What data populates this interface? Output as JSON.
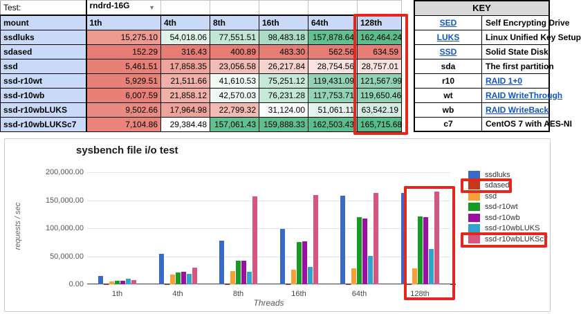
{
  "header": {
    "test_label": "Test:",
    "test_value": "rndrd-16G"
  },
  "table": {
    "columns": [
      "mount",
      "1th",
      "4th",
      "8th",
      "16th",
      "64th",
      "128th"
    ],
    "rows": [
      {
        "label": "ssdluks",
        "cells": [
          {
            "v": "15,275.10",
            "c": "#ED9B91"
          },
          {
            "v": "54,018.06",
            "c": "#E0F3EA"
          },
          {
            "v": "77,551.51",
            "c": "#C3E7D6"
          },
          {
            "v": "98,483.18",
            "c": "#AADCC5"
          },
          {
            "v": "157,878.64",
            "c": "#61BF90"
          },
          {
            "v": "162,464.24",
            "c": "#5BBC8C"
          }
        ]
      },
      {
        "label": "sdased",
        "cells": [
          {
            "v": "152.29",
            "c": "#E67C73"
          },
          {
            "v": "316.43",
            "c": "#E67C73"
          },
          {
            "v": "400.89",
            "c": "#E67C73"
          },
          {
            "v": "483.30",
            "c": "#E67D74"
          },
          {
            "v": "562.56",
            "c": "#E67D74"
          },
          {
            "v": "634.59",
            "c": "#E67E75"
          }
        ]
      },
      {
        "label": "ssd",
        "cells": [
          {
            "v": "5,461.51",
            "c": "#E78076"
          },
          {
            "v": "17,858.35",
            "c": "#EEA49B"
          },
          {
            "v": "23,056.58",
            "c": "#F2BDB6"
          },
          {
            "v": "26,217.84",
            "c": "#F6D2CD"
          },
          {
            "v": "28,754.56",
            "c": "#F9E2DF"
          },
          {
            "v": "28,757.01",
            "c": "#F9E2DF"
          }
        ]
      },
      {
        "label": "ssd-r10wt",
        "cells": [
          {
            "v": "5,929.51",
            "c": "#E78076"
          },
          {
            "v": "21,511.66",
            "c": "#F0B0A8"
          },
          {
            "v": "41,610.53",
            "c": "#F0F9F4"
          },
          {
            "v": "75,251.12",
            "c": "#C6E8D8"
          },
          {
            "v": "119,431.09",
            "c": "#91D2B4"
          },
          {
            "v": "121,567.99",
            "c": "#8FD1B3"
          }
        ]
      },
      {
        "label": "ssd-r10wb",
        "cells": [
          {
            "v": "6,007.59",
            "c": "#E78177"
          },
          {
            "v": "21,858.12",
            "c": "#F0B1A9"
          },
          {
            "v": "42,570.03",
            "c": "#EFF8F4"
          },
          {
            "v": "76,231.28",
            "c": "#C5E8D7"
          },
          {
            "v": "117,753.71",
            "c": "#93D3B6"
          },
          {
            "v": "119,650.46",
            "c": "#91D2B4"
          }
        ]
      },
      {
        "label": "ssd-r10wbLUKS",
        "cells": [
          {
            "v": "9,502.66",
            "c": "#E98B81"
          },
          {
            "v": "17,964.98",
            "c": "#EEA49B"
          },
          {
            "v": "22,799.32",
            "c": "#F2BCB5"
          },
          {
            "v": "31,124.00",
            "c": "#FCFEFD"
          },
          {
            "v": "51,061.11",
            "c": "#E4F4EC"
          },
          {
            "v": "63,542.19",
            "c": "#D4EDE2"
          }
        ]
      },
      {
        "label": "ssd-r10wbLUKSc7",
        "cells": [
          {
            "v": "7,104.86",
            "c": "#E8847A"
          },
          {
            "v": "29,384.48",
            "c": "#FEFCFC"
          },
          {
            "v": "157,061.43",
            "c": "#62BF90"
          },
          {
            "v": "159,888.33",
            "c": "#5FBE8E"
          },
          {
            "v": "162,503.43",
            "c": "#5BBC8C"
          },
          {
            "v": "165,715.68",
            "c": "#57BB8A"
          }
        ]
      }
    ]
  },
  "key": {
    "title": "KEY",
    "rows": [
      {
        "abbr": "SED",
        "desc": "Self Encrypting Drive",
        "abbr_link": true,
        "desc_link": false
      },
      {
        "abbr": "LUKS",
        "desc": "Linux Unified Key Setup",
        "abbr_link": true,
        "desc_link": false
      },
      {
        "abbr": "SSD",
        "desc": "Solid State Disk",
        "abbr_link": true,
        "desc_link": false
      },
      {
        "abbr": "sda",
        "desc": "The first partition",
        "abbr_link": false,
        "desc_link": false
      },
      {
        "abbr": "r10",
        "desc": "RAID 1+0",
        "abbr_link": false,
        "desc_link": true
      },
      {
        "abbr": "wt",
        "desc": "RAID WriteThrough",
        "abbr_link": false,
        "desc_link": true
      },
      {
        "abbr": "wb",
        "desc": "RAID WriteBack",
        "abbr_link": false,
        "desc_link": true
      },
      {
        "abbr": "c7",
        "desc": "CentOS 7 with AES-NI",
        "abbr_link": false,
        "desc_link": false
      }
    ]
  },
  "chart_data": {
    "type": "bar",
    "title": "sysbench file i/o test",
    "xlabel": "Threads",
    "ylabel": "requests / sec",
    "categories": [
      "1th",
      "4th",
      "8th",
      "16th",
      "64th",
      "128th"
    ],
    "series": [
      {
        "name": "ssdluks",
        "color": "#3A6AC8",
        "values": [
          15275.1,
          54018.06,
          77551.51,
          98483.18,
          157878.64,
          162464.24
        ]
      },
      {
        "name": "sdased",
        "color": "#C23A1B",
        "values": [
          152.29,
          316.43,
          400.89,
          483.3,
          562.56,
          634.59
        ]
      },
      {
        "name": "ssd",
        "color": "#F79F38",
        "values": [
          5461.51,
          17858.35,
          23056.58,
          26217.84,
          28754.56,
          28757.01
        ]
      },
      {
        "name": "ssd-r10wt",
        "color": "#179B25",
        "values": [
          5929.51,
          21511.66,
          41610.53,
          75251.12,
          119431.09,
          121567.99
        ]
      },
      {
        "name": "ssd-r10wb",
        "color": "#9A10A0",
        "values": [
          6007.59,
          21858.12,
          42570.03,
          76231.28,
          117753.71,
          119650.46
        ]
      },
      {
        "name": "ssd-r10wbLUKS",
        "color": "#31A3CC",
        "values": [
          9502.66,
          17964.98,
          22799.32,
          31124.0,
          51061.11,
          63542.19
        ]
      },
      {
        "name": "ssd-r10wbLUKSc7",
        "color": "#D65680",
        "values": [
          7104.86,
          29384.48,
          157061.43,
          159888.33,
          162503.43,
          165715.68
        ]
      }
    ],
    "ylim": [
      0,
      200000
    ],
    "yticks": [
      "200,000.00",
      "150,000.00",
      "100,000.00",
      "50,000.00",
      "0.00"
    ],
    "grid": true,
    "legend_position": "right"
  },
  "annotations": {
    "highlight_color": "#E5261D"
  }
}
